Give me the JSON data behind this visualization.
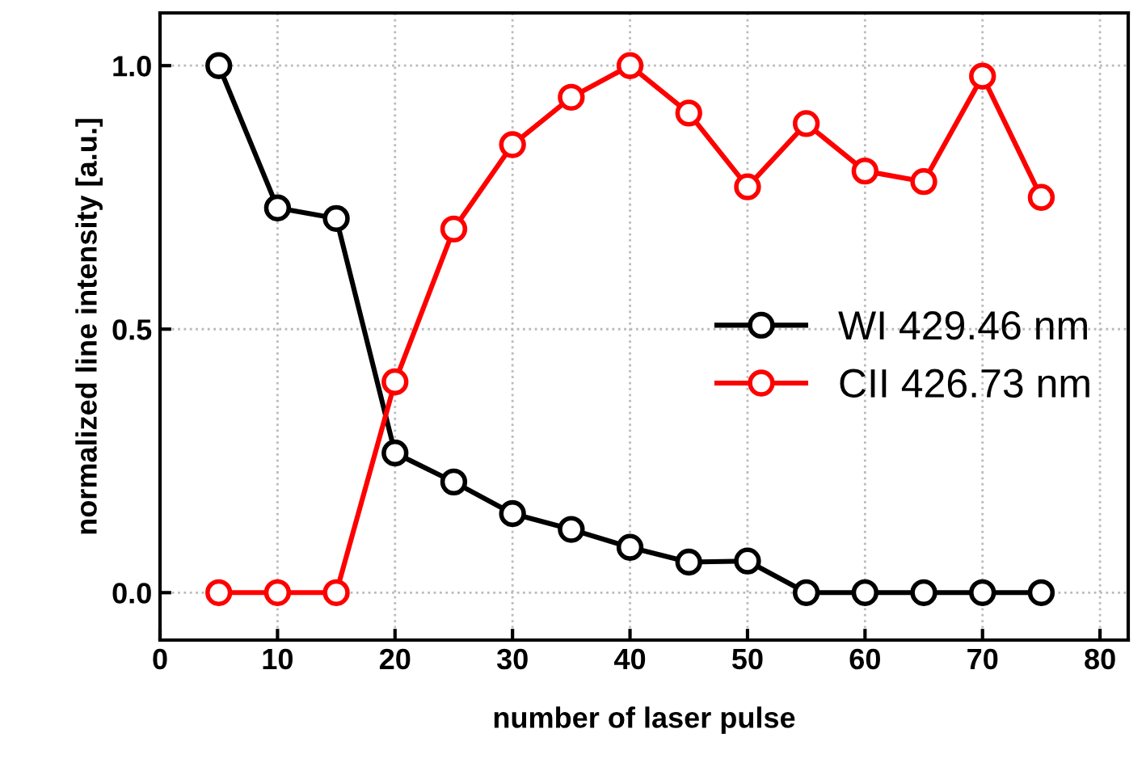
{
  "chart_data": {
    "type": "line",
    "xlabel": "number of laser pulse",
    "ylabel": "normalized line intensity [a.u.]",
    "x": [
      5,
      10,
      15,
      20,
      25,
      30,
      35,
      40,
      45,
      50,
      55,
      60,
      65,
      70,
      75
    ],
    "series": [
      {
        "name": "WI 429.46 nm",
        "color": "#000000",
        "values": [
          1.0,
          0.73,
          0.71,
          0.265,
          0.21,
          0.15,
          0.12,
          0.086,
          0.058,
          0.06,
          0,
          0,
          0,
          0,
          0
        ]
      },
      {
        "name": "CII 426.73 nm",
        "color": "#ff0000",
        "values": [
          0,
          0,
          0,
          0.4,
          0.69,
          0.85,
          0.94,
          1.0,
          0.91,
          0.77,
          0.89,
          0.8,
          0.78,
          0.98,
          0.75
        ]
      }
    ],
    "xlim": [
      0,
      82.4
    ],
    "xticks": [
      0,
      10,
      20,
      30,
      40,
      50,
      60,
      70,
      80
    ],
    "ylim": [
      -0.09,
      1.1
    ],
    "yticks": [
      {
        "value": 0,
        "label": "0.0"
      },
      {
        "value": 0.5,
        "label": "0.5"
      },
      {
        "value": 1.0,
        "label": "1.0"
      }
    ],
    "grid": true,
    "legend": "right",
    "marker": "circle",
    "line_style": "solid"
  }
}
